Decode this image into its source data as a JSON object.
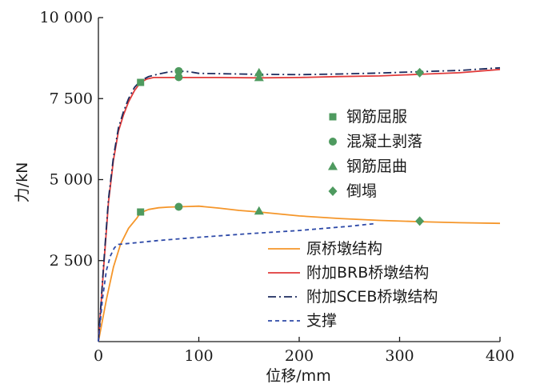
{
  "chart_data": {
    "type": "line",
    "xlabel": "位移/mm",
    "ylabel": "力/kN",
    "xlim": [
      0,
      400
    ],
    "ylim": [
      0,
      10000
    ],
    "x_ticks": [
      0,
      100,
      200,
      300,
      400
    ],
    "x_tick_labels": [
      "0",
      "100",
      "200",
      "300",
      "400"
    ],
    "y_ticks": [
      2500,
      5000,
      7500,
      10000
    ],
    "y_tick_labels": [
      "2 500",
      "5 000",
      "7 500",
      "10 000"
    ],
    "grid": false,
    "legend_lines_position": "bottom-right",
    "legend_markers_position": "right",
    "series": [
      {
        "name": "原桥墩结构",
        "color": "#f5962a",
        "dash": "solid",
        "points": [
          [
            0,
            0
          ],
          [
            8,
            1300
          ],
          [
            15,
            2300
          ],
          [
            22,
            3000
          ],
          [
            30,
            3500
          ],
          [
            38,
            3800
          ],
          [
            42,
            3980
          ],
          [
            50,
            4080
          ],
          [
            60,
            4130
          ],
          [
            70,
            4150
          ],
          [
            80,
            4160
          ],
          [
            90,
            4170
          ],
          [
            100,
            4180
          ],
          [
            120,
            4120
          ],
          [
            140,
            4050
          ],
          [
            160,
            4000
          ],
          [
            200,
            3880
          ],
          [
            240,
            3800
          ],
          [
            280,
            3740
          ],
          [
            320,
            3700
          ],
          [
            360,
            3670
          ],
          [
            400,
            3650
          ]
        ]
      },
      {
        "name": "附加BRB桥墩结构",
        "color": "#e03a3a",
        "dash": "solid",
        "points": [
          [
            0,
            0
          ],
          [
            5,
            2200
          ],
          [
            10,
            4300
          ],
          [
            15,
            5600
          ],
          [
            20,
            6500
          ],
          [
            25,
            7000
          ],
          [
            30,
            7400
          ],
          [
            36,
            7750
          ],
          [
            42,
            8000
          ],
          [
            48,
            8100
          ],
          [
            55,
            8150
          ],
          [
            80,
            8150
          ],
          [
            120,
            8150
          ],
          [
            160,
            8140
          ],
          [
            200,
            8150
          ],
          [
            240,
            8180
          ],
          [
            280,
            8200
          ],
          [
            320,
            8250
          ],
          [
            360,
            8300
          ],
          [
            400,
            8400
          ]
        ]
      },
      {
        "name": "附加SCEB桥墩结构",
        "color": "#1c2b5e",
        "dash": "10,4,2,4",
        "points": [
          [
            0,
            0
          ],
          [
            5,
            2300
          ],
          [
            10,
            4400
          ],
          [
            15,
            5700
          ],
          [
            20,
            6600
          ],
          [
            25,
            7100
          ],
          [
            30,
            7500
          ],
          [
            36,
            7850
          ],
          [
            42,
            8050
          ],
          [
            50,
            8180
          ],
          [
            60,
            8260
          ],
          [
            70,
            8320
          ],
          [
            80,
            8350
          ],
          [
            90,
            8330
          ],
          [
            100,
            8280
          ],
          [
            120,
            8270
          ],
          [
            140,
            8260
          ],
          [
            160,
            8250
          ],
          [
            200,
            8240
          ],
          [
            240,
            8260
          ],
          [
            280,
            8290
          ],
          [
            320,
            8330
          ],
          [
            360,
            8370
          ],
          [
            400,
            8450
          ]
        ]
      },
      {
        "name": "支撑",
        "color": "#2e4aa8",
        "dash": "5,4",
        "points": [
          [
            0,
            0
          ],
          [
            4,
            1300
          ],
          [
            8,
            2200
          ],
          [
            12,
            2650
          ],
          [
            16,
            2900
          ],
          [
            20,
            3000
          ],
          [
            30,
            3030
          ],
          [
            40,
            3060
          ],
          [
            60,
            3120
          ],
          [
            80,
            3170
          ],
          [
            100,
            3220
          ],
          [
            150,
            3330
          ],
          [
            200,
            3430
          ],
          [
            250,
            3560
          ],
          [
            275,
            3640
          ]
        ]
      }
    ],
    "marker_color": "#4e9a5f",
    "marker_legend": [
      {
        "label": "钢筋屈服",
        "shape": "square"
      },
      {
        "label": "混凝土剥落",
        "shape": "circle"
      },
      {
        "label": "钢筋屈曲",
        "shape": "triangle"
      },
      {
        "label": "倒塌",
        "shape": "diamond"
      }
    ],
    "markers": [
      {
        "shape": "square",
        "x": 42,
        "y": 4000
      },
      {
        "shape": "square",
        "x": 42,
        "y": 8000
      },
      {
        "shape": "circle",
        "x": 80,
        "y": 4160
      },
      {
        "shape": "circle",
        "x": 80,
        "y": 8160
      },
      {
        "shape": "circle",
        "x": 80,
        "y": 8350
      },
      {
        "shape": "triangle",
        "x": 160,
        "y": 4030
      },
      {
        "shape": "triangle",
        "x": 160,
        "y": 8150
      },
      {
        "shape": "triangle",
        "x": 160,
        "y": 8300
      },
      {
        "shape": "diamond",
        "x": 320,
        "y": 3720
      },
      {
        "shape": "diamond",
        "x": 320,
        "y": 8300
      }
    ]
  }
}
